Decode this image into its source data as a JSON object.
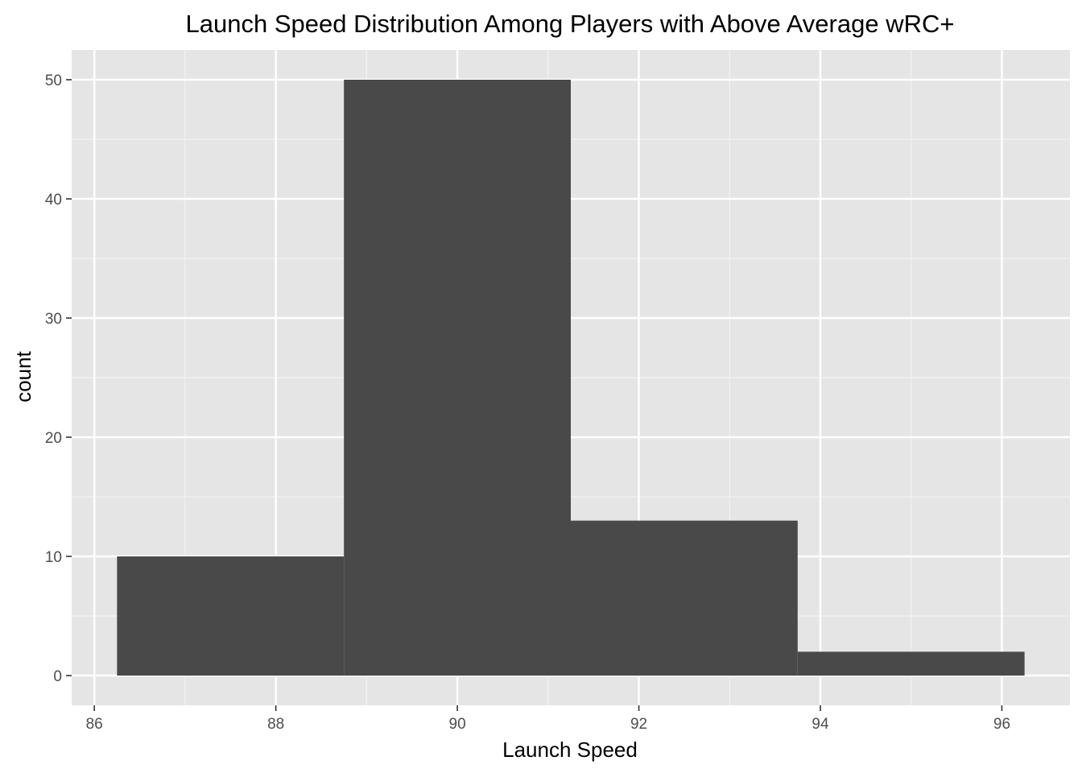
{
  "chart_data": {
    "type": "bar",
    "title": "Launch Speed Distribution Among Players with Above Average wRC+",
    "xlabel": "Launch Speed",
    "ylabel": "count",
    "bins": [
      {
        "x0": 86.25,
        "x1": 88.75,
        "count": 10
      },
      {
        "x0": 88.75,
        "x1": 91.25,
        "count": 50
      },
      {
        "x0": 91.25,
        "x1": 93.75,
        "count": 13
      },
      {
        "x0": 93.75,
        "x1": 96.25,
        "count": 2
      }
    ],
    "xlim": [
      85.75,
      96.75
    ],
    "ylim": [
      -2.5,
      52.5
    ],
    "x_ticks": [
      86,
      88,
      90,
      92,
      94,
      96
    ],
    "y_ticks": [
      0,
      10,
      20,
      30,
      40,
      50
    ],
    "grid": true,
    "colors": {
      "bar": "#494949",
      "panel": "#e5e5e5",
      "grid_major": "#ffffff",
      "grid_minor": "#f2f2f2"
    }
  }
}
